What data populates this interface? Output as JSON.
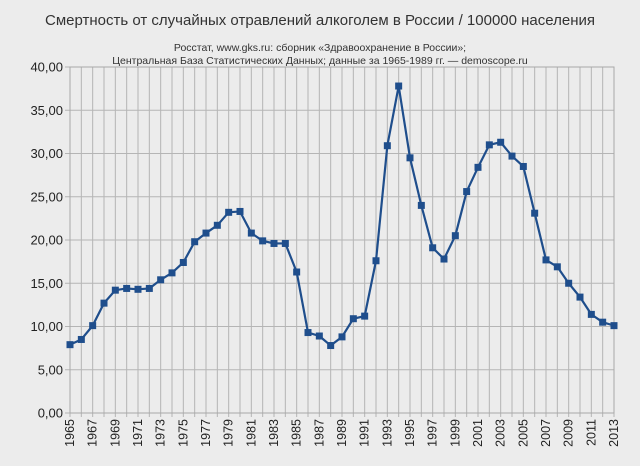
{
  "chart_data": {
    "type": "line",
    "title": "Смертность от случайных отравлений алкоголем в России / 100000 населения",
    "subtitle_lines": [
      "Росстат, www.gks.ru: сборник «Здравоохранение в России»;",
      "Центральная База Статистических Данных;  данные за 1965-1989 гг. — demoscope.ru"
    ],
    "xlabel": "",
    "ylabel": "",
    "ylim": [
      0,
      40
    ],
    "ytick_labels": [
      "0,00",
      "5,00",
      "10,00",
      "15,00",
      "20,00",
      "25,00",
      "30,00",
      "35,00",
      "40,00"
    ],
    "xtick_labels": [
      "1965",
      "1967",
      "1969",
      "1971",
      "1973",
      "1975",
      "1977",
      "1979",
      "1981",
      "1983",
      "1985",
      "1987",
      "1989",
      "1991",
      "1993",
      "1995",
      "1997",
      "1999",
      "2001",
      "2003",
      "2005",
      "2007",
      "2009",
      "2011",
      "2013"
    ],
    "grid": true,
    "legend": false,
    "color": "#1f4e8c",
    "series": [
      {
        "x": [
          1965,
          1966,
          1967,
          1968,
          1969,
          1970,
          1971,
          1972,
          1973,
          1974,
          1975,
          1976,
          1977,
          1978,
          1979,
          1980,
          1981,
          1982,
          1983,
          1984,
          1985,
          1986,
          1987,
          1988,
          1989,
          1990,
          1991,
          1992,
          1993,
          1994,
          1995,
          1996,
          1997,
          1998,
          1999,
          2000,
          2001,
          2002,
          2003,
          2004,
          2005,
          2006,
          2007,
          2008,
          2009,
          2010,
          2011,
          2012,
          2013
        ],
        "values": [
          7.9,
          8.5,
          10.1,
          12.7,
          14.2,
          14.4,
          14.3,
          14.4,
          15.4,
          16.2,
          17.4,
          19.8,
          20.8,
          21.7,
          23.2,
          23.3,
          20.8,
          19.9,
          19.6,
          19.6,
          16.3,
          9.3,
          8.9,
          7.8,
          8.8,
          10.9,
          11.2,
          17.6,
          30.9,
          37.8,
          29.5,
          24.0,
          19.1,
          17.8,
          20.5,
          25.6,
          28.4,
          31.0,
          31.3,
          29.7,
          28.5,
          23.1,
          17.7,
          16.9,
          15.0,
          13.4,
          11.4,
          10.5,
          10.1
        ]
      }
    ]
  }
}
